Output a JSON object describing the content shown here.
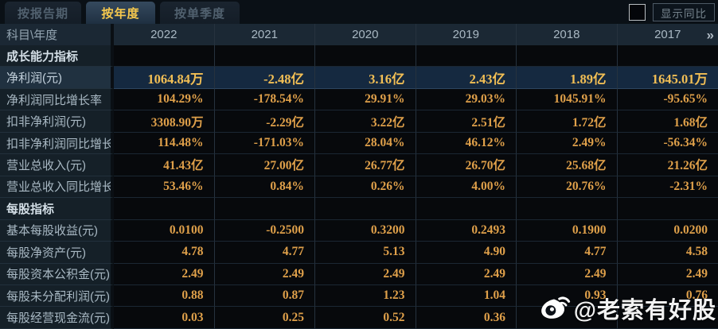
{
  "tabs": [
    {
      "label": "按报告期",
      "active": false
    },
    {
      "label": "按年度",
      "active": true
    },
    {
      "label": "按单季度",
      "active": false
    }
  ],
  "controls": {
    "compare_checkbox_checked": false,
    "compare_label": "显示同比"
  },
  "table": {
    "corner_label": "科目\\年度",
    "years": [
      "2022",
      "2021",
      "2020",
      "2019",
      "2018",
      "2017"
    ],
    "more_icon": "»",
    "rows": [
      {
        "label": "成长能力指标",
        "type": "section",
        "highlight": false,
        "values": [
          "",
          "",
          "",
          "",
          "",
          ""
        ]
      },
      {
        "label": "净利润(元)",
        "type": "data",
        "highlight": true,
        "values": [
          "1064.84万",
          "-2.48亿",
          "3.16亿",
          "2.43亿",
          "1.89亿",
          "1645.01万"
        ]
      },
      {
        "label": "净利润同比增长率",
        "type": "data",
        "highlight": false,
        "values": [
          "104.29%",
          "-178.54%",
          "29.91%",
          "29.03%",
          "1045.91%",
          "-95.65%"
        ]
      },
      {
        "label": "扣非净利润(元)",
        "type": "data",
        "highlight": false,
        "values": [
          "3308.90万",
          "-2.29亿",
          "3.22亿",
          "2.51亿",
          "1.72亿",
          "1.68亿"
        ]
      },
      {
        "label": "扣非净利润同比增长率",
        "type": "data",
        "highlight": false,
        "values": [
          "114.48%",
          "-171.03%",
          "28.04%",
          "46.12%",
          "2.49%",
          "-56.34%"
        ]
      },
      {
        "label": "营业总收入(元)",
        "type": "data",
        "highlight": false,
        "values": [
          "41.43亿",
          "27.00亿",
          "26.77亿",
          "26.70亿",
          "25.68亿",
          "21.26亿"
        ]
      },
      {
        "label": "营业总收入同比增长率",
        "type": "data",
        "highlight": false,
        "values": [
          "53.46%",
          "0.84%",
          "0.26%",
          "4.00%",
          "20.76%",
          "-2.31%"
        ]
      },
      {
        "label": "每股指标",
        "type": "section",
        "highlight": false,
        "values": [
          "",
          "",
          "",
          "",
          "",
          ""
        ]
      },
      {
        "label": "基本每股收益(元)",
        "type": "data",
        "highlight": false,
        "values": [
          "0.0100",
          "-0.2500",
          "0.3200",
          "0.2493",
          "0.1900",
          "0.0200"
        ]
      },
      {
        "label": "每股净资产(元)",
        "type": "data",
        "highlight": false,
        "values": [
          "4.78",
          "4.77",
          "5.13",
          "4.90",
          "4.77",
          "4.58"
        ]
      },
      {
        "label": "每股资本公积金(元)",
        "type": "data",
        "highlight": false,
        "values": [
          "2.49",
          "2.49",
          "2.49",
          "2.49",
          "2.49",
          "2.49"
        ]
      },
      {
        "label": "每股未分配利润(元)",
        "type": "data",
        "highlight": false,
        "values": [
          "0.88",
          "0.87",
          "1.23",
          "1.04",
          "0.93",
          "0.76"
        ]
      },
      {
        "label": "每股经营现金流(元)",
        "type": "data",
        "highlight": false,
        "values": [
          "0.03",
          "0.25",
          "0.52",
          "0.36",
          "",
          ""
        ]
      }
    ]
  },
  "watermark": {
    "text": "@老索有好股",
    "icon": "weibo-icon"
  },
  "colors": {
    "accent_gold": "#f7c94e",
    "value_gold": "#dfa04a",
    "highlight_row_bg": "#152940",
    "header_bg": "#1b2834",
    "label_col_bg": "#152028"
  }
}
